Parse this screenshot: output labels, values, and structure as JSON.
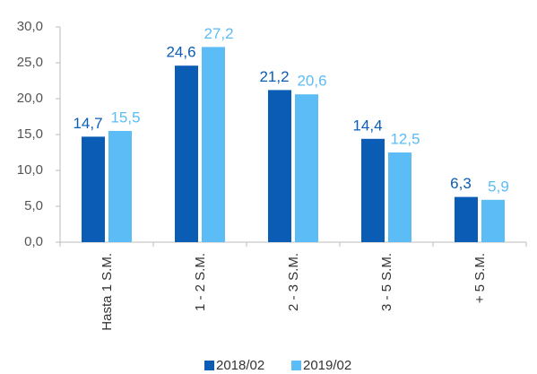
{
  "chart_data": {
    "type": "bar",
    "categories": [
      "Hasta 1 S.M.",
      "1 - 2 S.M.",
      "2 - 3 S.M.",
      "3 - 5 S.M.",
      "+ 5 S.M."
    ],
    "series": [
      {
        "name": "2018/02",
        "color": "#0b5cb5",
        "values": [
          14.7,
          24.6,
          21.2,
          14.4,
          6.3
        ],
        "value_labels": [
          "14,7",
          "24,6",
          "21,2",
          "14,4",
          "6,3"
        ]
      },
      {
        "name": "2019/02",
        "color": "#5bbcf6",
        "values": [
          15.5,
          27.2,
          20.6,
          12.5,
          5.9
        ],
        "value_labels": [
          "15,5",
          "27,2",
          "20,6",
          "12,5",
          "5,9"
        ]
      }
    ],
    "ylim": [
      0,
      30
    ],
    "yticks": [
      {
        "value": 0,
        "label": "0,0"
      },
      {
        "value": 5,
        "label": "5,0"
      },
      {
        "value": 10,
        "label": "10,0"
      },
      {
        "value": 15,
        "label": "15,0"
      },
      {
        "value": 20,
        "label": "20,0"
      },
      {
        "value": 25,
        "label": "25,0"
      },
      {
        "value": 30,
        "label": "30,0"
      }
    ],
    "grid": false,
    "legend": "bottom"
  }
}
